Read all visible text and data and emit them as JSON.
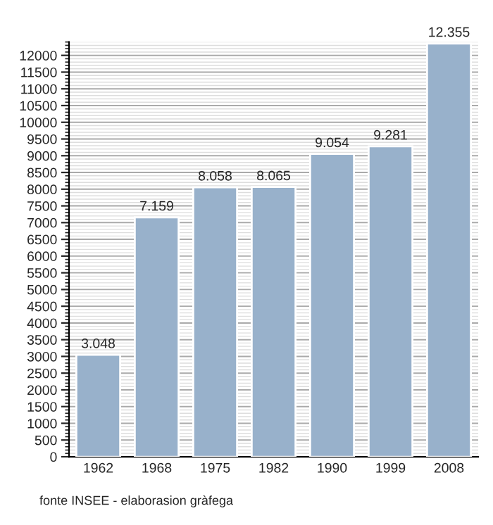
{
  "chart_data": {
    "type": "bar",
    "categories": [
      "1962",
      "1968",
      "1975",
      "1982",
      "1990",
      "1999",
      "2008"
    ],
    "values": [
      3048,
      7159,
      8058,
      8065,
      9054,
      9281,
      12355
    ],
    "value_labels": [
      "3.048",
      "7.159",
      "8.058",
      "8.065",
      "9.054",
      "9.281",
      "12.355"
    ],
    "color": "#98b1cb",
    "ylim": [
      0,
      12400
    ],
    "yticks": [
      0,
      500,
      1000,
      1500,
      2000,
      2500,
      3000,
      3500,
      4000,
      4500,
      5000,
      5500,
      6000,
      6500,
      7000,
      7500,
      8000,
      8500,
      9000,
      9500,
      10000,
      10500,
      11000,
      11500,
      12000
    ],
    "grid": "y",
    "annotations": [
      "fonte INSEE - elaborasion gràfega"
    ]
  }
}
